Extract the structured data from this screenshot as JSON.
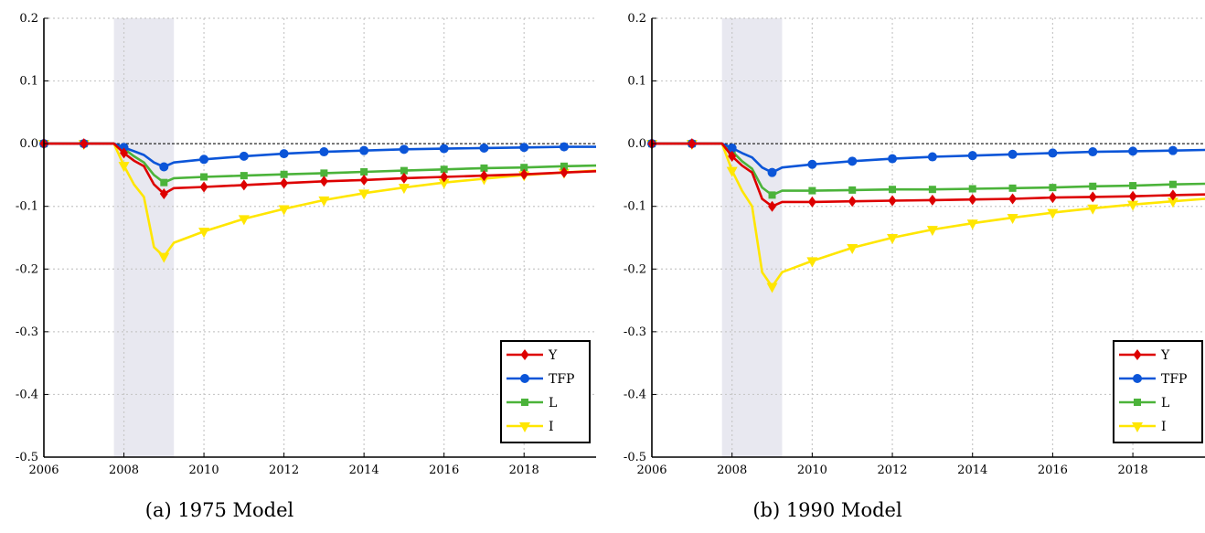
{
  "chart_data": [
    {
      "type": "line",
      "caption": "(a) 1975 Model",
      "xlim": [
        2006,
        2019.8
      ],
      "ylim": [
        -0.5,
        0.2
      ],
      "x_ticks": [
        2006,
        2008,
        2010,
        2012,
        2014,
        2016,
        2018
      ],
      "y_ticks": [
        "0.2",
        "0.1",
        "0.0",
        "-0.1",
        "-0.2",
        "-0.3",
        "-0.4",
        "-0.5"
      ],
      "grid": true,
      "legend_position": "bottom-right",
      "shaded_region": [
        2007.75,
        2009.25
      ],
      "zero_line": 0,
      "series": [
        {
          "name": "I",
          "color": "#ffe600",
          "marker": "triangle-down",
          "x": [
            2006,
            2007,
            2007.75,
            2008,
            2008.25,
            2008.5,
            2008.75,
            2009,
            2009.25,
            2010,
            2011,
            2012,
            2013,
            2014,
            2015,
            2016,
            2017,
            2018,
            2019,
            2019.8
          ],
          "y": [
            0,
            0,
            0,
            -0.035,
            -0.065,
            -0.085,
            -0.165,
            -0.18,
            -0.158,
            -0.14,
            -0.12,
            -0.104,
            -0.09,
            -0.079,
            -0.07,
            -0.062,
            -0.056,
            -0.05,
            -0.046,
            -0.043
          ]
        },
        {
          "name": "L",
          "color": "#4bb33a",
          "marker": "square",
          "x": [
            2006,
            2007,
            2007.75,
            2008,
            2008.25,
            2008.5,
            2008.75,
            2009,
            2009.25,
            2010,
            2011,
            2012,
            2013,
            2014,
            2015,
            2016,
            2017,
            2018,
            2019,
            2019.8
          ],
          "y": [
            0,
            0,
            0,
            -0.008,
            -0.02,
            -0.03,
            -0.05,
            -0.062,
            -0.055,
            -0.053,
            -0.051,
            -0.049,
            -0.047,
            -0.045,
            -0.043,
            -0.041,
            -0.039,
            -0.038,
            -0.036,
            -0.035
          ]
        },
        {
          "name": "TFP",
          "color": "#0b55d8",
          "marker": "circle",
          "x": [
            2006,
            2007,
            2007.75,
            2008,
            2008.25,
            2008.5,
            2008.75,
            2009,
            2009.25,
            2010,
            2011,
            2012,
            2013,
            2014,
            2015,
            2016,
            2017,
            2018,
            2019,
            2019.8
          ],
          "y": [
            0,
            0,
            0,
            -0.006,
            -0.012,
            -0.018,
            -0.03,
            -0.037,
            -0.03,
            -0.025,
            -0.02,
            -0.016,
            -0.013,
            -0.011,
            -0.009,
            -0.008,
            -0.007,
            -0.006,
            -0.005,
            -0.005
          ]
        },
        {
          "name": "Y",
          "color": "#dd0000",
          "marker": "diamond",
          "x": [
            2006,
            2007,
            2007.75,
            2008,
            2008.25,
            2008.5,
            2008.75,
            2009,
            2009.25,
            2010,
            2011,
            2012,
            2013,
            2014,
            2015,
            2016,
            2017,
            2018,
            2019,
            2019.8
          ],
          "y": [
            0,
            0,
            0,
            -0.015,
            -0.027,
            -0.036,
            -0.065,
            -0.08,
            -0.071,
            -0.069,
            -0.066,
            -0.063,
            -0.06,
            -0.058,
            -0.055,
            -0.053,
            -0.051,
            -0.049,
            -0.046,
            -0.044
          ]
        }
      ]
    },
    {
      "type": "line",
      "caption": "(b) 1990 Model",
      "xlim": [
        2006,
        2019.8
      ],
      "ylim": [
        -0.5,
        0.2
      ],
      "x_ticks": [
        2006,
        2008,
        2010,
        2012,
        2014,
        2016,
        2018
      ],
      "y_ticks": [
        "0.2",
        "0.1",
        "0.0",
        "-0.1",
        "-0.2",
        "-0.3",
        "-0.4",
        "-0.5"
      ],
      "grid": true,
      "legend_position": "bottom-right",
      "shaded_region": [
        2007.75,
        2009.25
      ],
      "zero_line": 0,
      "series": [
        {
          "name": "I",
          "color": "#ffe600",
          "marker": "triangle-down",
          "x": [
            2006,
            2007,
            2007.75,
            2008,
            2008.25,
            2008.5,
            2008.75,
            2009,
            2009.25,
            2010,
            2011,
            2012,
            2013,
            2014,
            2015,
            2016,
            2017,
            2018,
            2019,
            2019.8
          ],
          "y": [
            0,
            0,
            0,
            -0.043,
            -0.075,
            -0.1,
            -0.205,
            -0.228,
            -0.205,
            -0.187,
            -0.166,
            -0.15,
            -0.137,
            -0.127,
            -0.118,
            -0.11,
            -0.103,
            -0.097,
            -0.092,
            -0.088
          ]
        },
        {
          "name": "L",
          "color": "#4bb33a",
          "marker": "square",
          "x": [
            2006,
            2007,
            2007.75,
            2008,
            2008.25,
            2008.5,
            2008.75,
            2009,
            2009.25,
            2010,
            2011,
            2012,
            2013,
            2014,
            2015,
            2016,
            2017,
            2018,
            2019,
            2019.8
          ],
          "y": [
            0,
            0,
            0,
            -0.012,
            -0.028,
            -0.04,
            -0.07,
            -0.082,
            -0.075,
            -0.075,
            -0.074,
            -0.073,
            -0.073,
            -0.072,
            -0.071,
            -0.07,
            -0.068,
            -0.067,
            -0.065,
            -0.064
          ]
        },
        {
          "name": "TFP",
          "color": "#0b55d8",
          "marker": "circle",
          "x": [
            2006,
            2007,
            2007.75,
            2008,
            2008.25,
            2008.5,
            2008.75,
            2009,
            2009.25,
            2010,
            2011,
            2012,
            2013,
            2014,
            2015,
            2016,
            2017,
            2018,
            2019,
            2019.8
          ],
          "y": [
            0,
            0,
            0,
            -0.007,
            -0.015,
            -0.022,
            -0.038,
            -0.046,
            -0.038,
            -0.033,
            -0.028,
            -0.024,
            -0.021,
            -0.019,
            -0.017,
            -0.015,
            -0.013,
            -0.012,
            -0.011,
            -0.01
          ]
        },
        {
          "name": "Y",
          "color": "#dd0000",
          "marker": "diamond",
          "x": [
            2006,
            2007,
            2007.75,
            2008,
            2008.25,
            2008.5,
            2008.75,
            2009,
            2009.25,
            2010,
            2011,
            2012,
            2013,
            2014,
            2015,
            2016,
            2017,
            2018,
            2019,
            2019.8
          ],
          "y": [
            0,
            0,
            0,
            -0.02,
            -0.035,
            -0.046,
            -0.088,
            -0.1,
            -0.093,
            -0.093,
            -0.092,
            -0.091,
            -0.09,
            -0.089,
            -0.088,
            -0.086,
            -0.085,
            -0.084,
            -0.082,
            -0.081
          ]
        }
      ]
    }
  ]
}
